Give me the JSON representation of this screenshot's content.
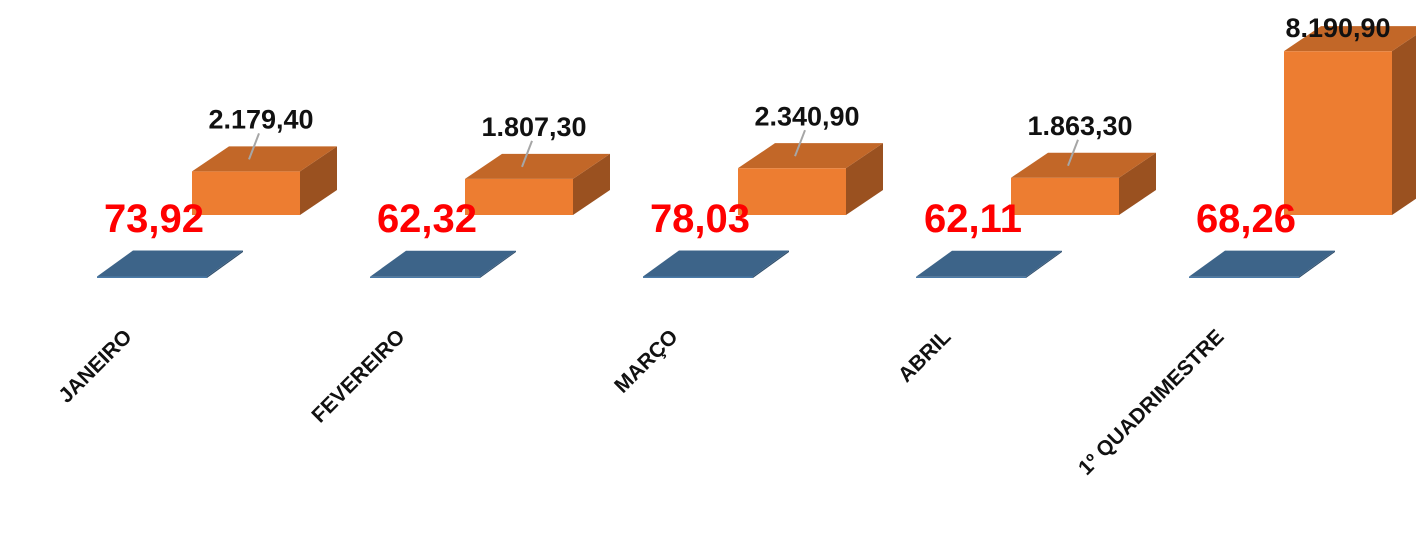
{
  "chart_data": {
    "type": "bar",
    "categories": [
      "JANEIRO",
      "FEVEREIRO",
      "MARÇO",
      "ABRIL",
      "1º QUADRIMESTRE"
    ],
    "series": [
      {
        "color": "#4a7aa7",
        "values": [
          73.92,
          62.32,
          78.03,
          62.11,
          68.26
        ],
        "value_labels": [
          "73,92",
          "62,32",
          "78,03",
          "62,11",
          "68,26"
        ]
      },
      {
        "color": "#ed7d31",
        "values": [
          2179.4,
          1807.3,
          2340.9,
          1863.3,
          8190.9
        ],
        "value_labels": [
          "2.179,40",
          "1.807,30",
          "2.340,90",
          "1.863,30",
          "8.190,90"
        ]
      }
    ],
    "ylim": [
      0,
      9000
    ]
  }
}
